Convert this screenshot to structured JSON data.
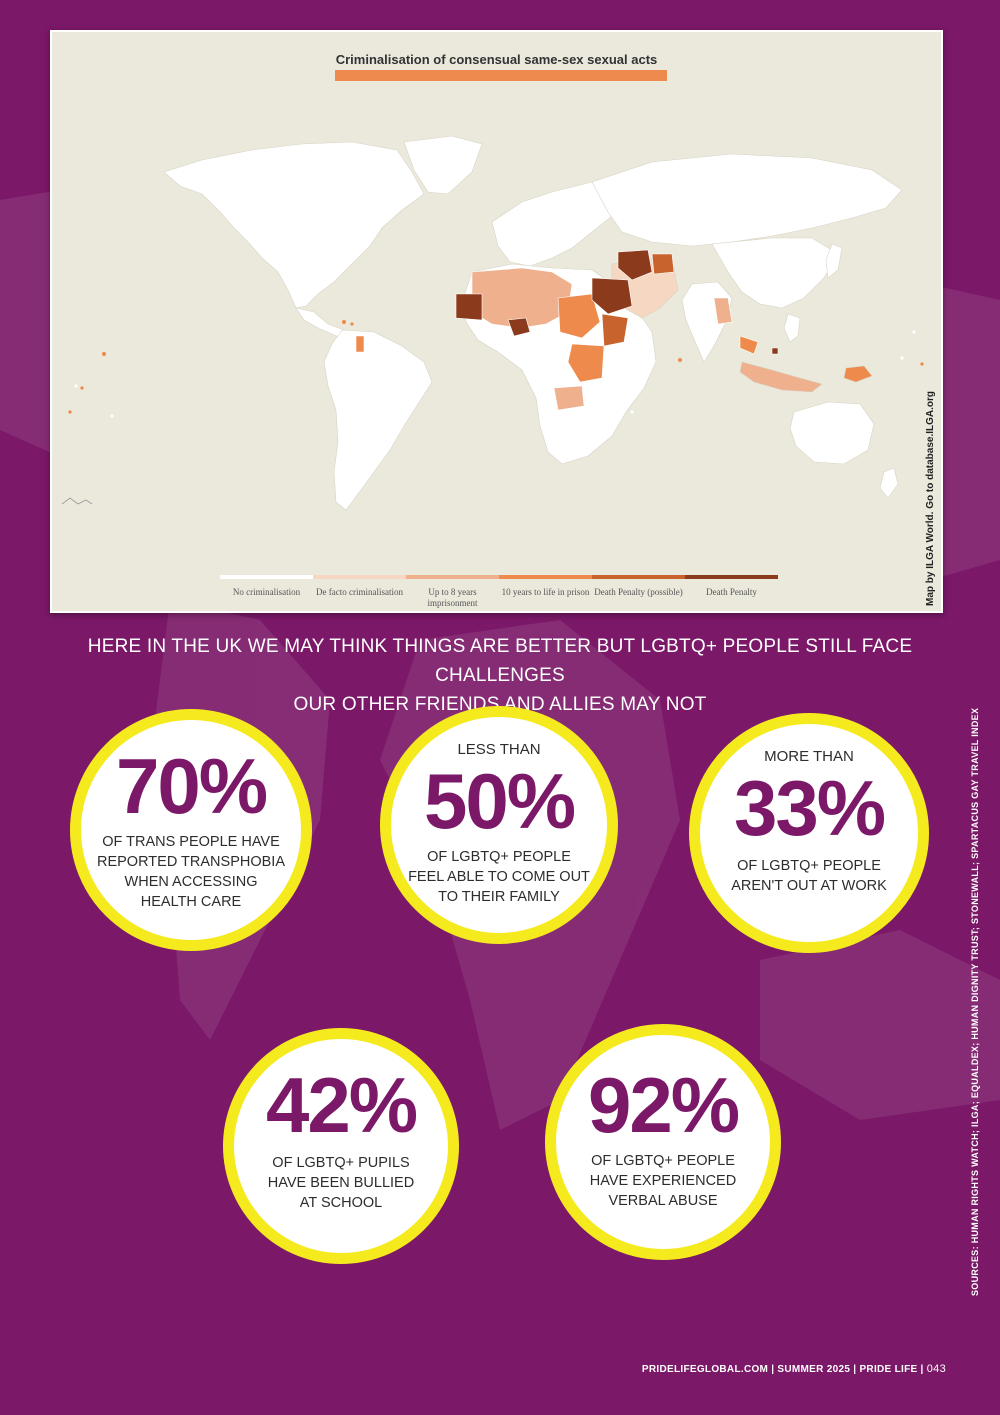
{
  "map": {
    "title": "Criminalisation of consensual same-sex sexual acts",
    "credit": "Map by ILGA World. Go to database.ILGA.org",
    "legend": [
      {
        "label": "No criminalisation",
        "color": "#ffffff"
      },
      {
        "label": "De facto criminalisation",
        "color": "#f6d7c2"
      },
      {
        "label": "Up to 8 years imprisonment",
        "color": "#efb08e"
      },
      {
        "label": "10 years to life in prison",
        "color": "#ee8a4b"
      },
      {
        "label": "Death Penalty (possible)",
        "color": "#c9632e"
      },
      {
        "label": "Death Penalty",
        "color": "#8b3a1b"
      }
    ]
  },
  "headline": {
    "line1": "HERE IN THE UK WE MAY THINK THINGS ARE BETTER BUT LGBTQ+ PEOPLE STILL FACE CHALLENGES",
    "line2": "OUR OTHER FRIENDS AND ALLIES MAY NOT"
  },
  "stats": [
    {
      "pre": "",
      "value": "70%",
      "desc": [
        "OF TRANS PEOPLE HAVE",
        "REPORTED TRANSPHOBIA",
        "WHEN ACCESSING",
        "HEALTH CARE"
      ]
    },
    {
      "pre": "LESS THAN",
      "value": "50%",
      "desc": [
        "OF LGBTQ+ PEOPLE",
        "FEEL ABLE TO COME OUT",
        "TO THEIR FAMILY"
      ]
    },
    {
      "pre": "MORE THAN",
      "value": "33%",
      "desc": [
        "OF LGBTQ+ PEOPLE",
        "AREN'T OUT AT WORK"
      ]
    },
    {
      "pre": "",
      "value": "42%",
      "desc": [
        "OF LGBTQ+ PUPILS",
        "HAVE BEEN BULLIED",
        "AT SCHOOL"
      ]
    },
    {
      "pre": "",
      "value": "92%",
      "desc": [
        "OF LGBTQ+ PEOPLE",
        "HAVE EXPERIENCED",
        "VERBAL ABUSE"
      ]
    }
  ],
  "sources": "SOURCES: HUMAN RIGHTS WATCH; ILGA; EQUALDEX; HUMAN DIGNITY TRUST; STONEWALL; SPARTACUS GAY TRAVEL INDEX",
  "footer": {
    "text": "PRIDELIFEGLOBAL.COM | SUMMER 2025 | PRIDE LIFE |",
    "page": "043"
  },
  "colors": {
    "background": "#7b1868",
    "ring": "#f5ea1e",
    "accent": "#ef8a4f"
  }
}
